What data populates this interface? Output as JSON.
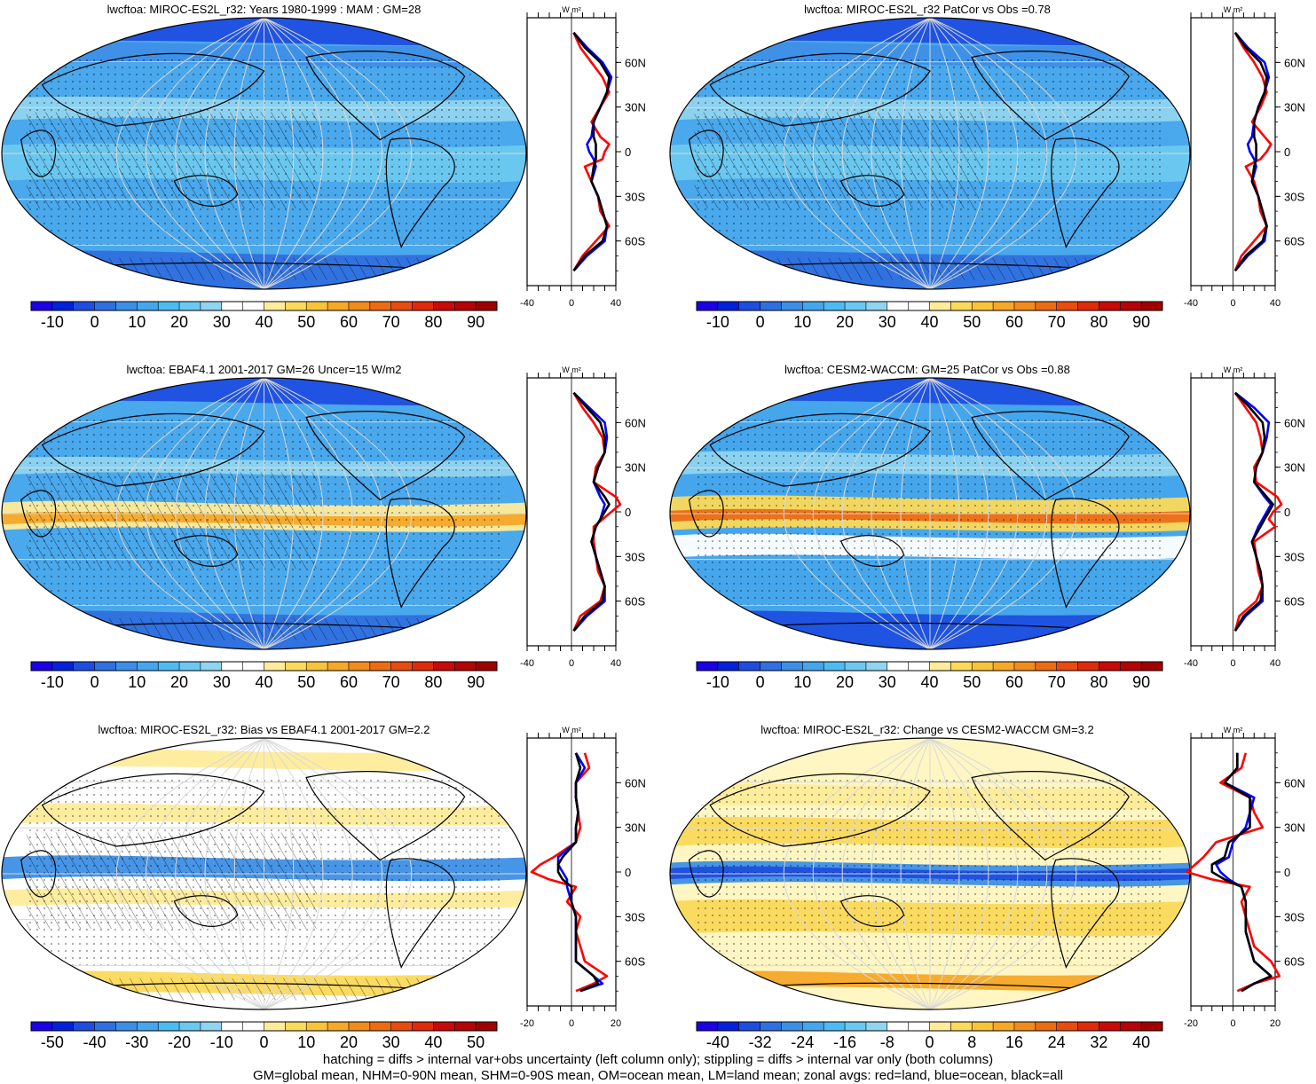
{
  "chart_data": [
    {
      "type": "heatmap",
      "title": "lwcftoa: MIROC-ES2L_r32: Years 1980-1999 : MAM : GM=28",
      "colorbar_ticks": [
        "-10",
        "0",
        "10",
        "20",
        "30",
        "40",
        "50",
        "60",
        "70",
        "80",
        "90"
      ],
      "colorbar_range": [
        -15,
        95
      ],
      "colorbar_step": 5,
      "zonal": {
        "unit": "W m²",
        "xlim": [
          -40,
          40
        ],
        "xticks": [
          "-40",
          "0",
          "40"
        ],
        "yticks": [
          "60N",
          "30N",
          "0",
          "30S",
          "60S"
        ],
        "lat": [
          80,
          70,
          60,
          50,
          40,
          30,
          20,
          10,
          5,
          0,
          -5,
          -10,
          -20,
          -30,
          -40,
          -50,
          -60,
          -70,
          -80
        ],
        "series": [
          {
            "name": "land",
            "color": "#ff0000",
            "values": [
              2,
              8,
              18,
              28,
              34,
              26,
              18,
              26,
              34,
              30,
              28,
              12,
              18,
              24,
              26,
              34,
              22,
              10,
              2
            ]
          },
          {
            "name": "ocean",
            "color": "#0000ff",
            "values": [
              2,
              14,
              28,
              36,
              32,
              26,
              20,
              18,
              14,
              16,
              20,
              22,
              18,
              24,
              28,
              32,
              30,
              14,
              2
            ]
          },
          {
            "name": "all",
            "color": "#000000",
            "values": [
              2,
              12,
              26,
              34,
              32,
              26,
              20,
              20,
              22,
              22,
              22,
              20,
              18,
              24,
              28,
              32,
              28,
              12,
              2
            ]
          }
        ]
      }
    },
    {
      "type": "heatmap",
      "title": "lwcftoa: MIROC-ES2L_r32 PatCor vs Obs =0.78",
      "colorbar_ticks": [
        "-10",
        "0",
        "10",
        "20",
        "30",
        "40",
        "50",
        "60",
        "70",
        "80",
        "90"
      ],
      "colorbar_range": [
        -15,
        95
      ],
      "colorbar_step": 5,
      "zonal": {
        "unit": "W m²",
        "xlim": [
          -40,
          40
        ],
        "xticks": [
          "-40",
          "0",
          "40"
        ],
        "yticks": [
          "60N",
          "30N",
          "0",
          "30S",
          "60S"
        ],
        "lat": [
          80,
          70,
          60,
          50,
          40,
          30,
          20,
          10,
          5,
          0,
          -5,
          -10,
          -20,
          -30,
          -40,
          -50,
          -60,
          -70,
          -80
        ],
        "series": [
          {
            "name": "land",
            "color": "#ff0000",
            "values": [
              2,
              10,
              20,
              28,
              32,
              26,
              18,
              30,
              36,
              32,
              26,
              12,
              20,
              24,
              26,
              32,
              20,
              8,
              2
            ]
          },
          {
            "name": "ocean",
            "color": "#0000ff",
            "values": [
              2,
              14,
              30,
              34,
              30,
              24,
              20,
              18,
              14,
              16,
              20,
              22,
              18,
              24,
              28,
              32,
              30,
              14,
              2
            ]
          },
          {
            "name": "all",
            "color": "#000000",
            "values": [
              2,
              12,
              26,
              32,
              30,
              24,
              20,
              20,
              22,
              22,
              22,
              20,
              18,
              24,
              28,
              32,
              28,
              12,
              2
            ]
          }
        ]
      }
    },
    {
      "type": "heatmap",
      "title": "lwcftoa: EBAF4.1 2001-2017 GM=26 Uncer=15 W/m2",
      "colorbar_ticks": [
        "-10",
        "0",
        "10",
        "20",
        "30",
        "40",
        "50",
        "60",
        "70",
        "80",
        "90"
      ],
      "colorbar_range": [
        -15,
        95
      ],
      "colorbar_step": 5,
      "zonal": {
        "unit": "W m²",
        "xlim": [
          -40,
          40
        ],
        "xticks": [
          "-40",
          "0",
          "40"
        ],
        "yticks": [
          "60N",
          "30N",
          "0",
          "30S",
          "60S"
        ],
        "lat": [
          80,
          70,
          60,
          50,
          40,
          30,
          20,
          10,
          5,
          0,
          -5,
          -10,
          -20,
          -30,
          -40,
          -50,
          -60,
          -70,
          -80
        ],
        "series": [
          {
            "name": "land",
            "color": "#ff0000",
            "values": [
              2,
              10,
              20,
              28,
              30,
              22,
              20,
              40,
              44,
              36,
              28,
              20,
              20,
              22,
              24,
              30,
              26,
              8,
              2
            ]
          },
          {
            "name": "ocean",
            "color": "#0000ff",
            "values": [
              2,
              16,
              30,
              32,
              30,
              24,
              20,
              26,
              30,
              28,
              26,
              22,
              18,
              22,
              26,
              30,
              30,
              14,
              2
            ]
          },
          {
            "name": "all",
            "color": "#000000",
            "values": [
              2,
              14,
              26,
              30,
              30,
              24,
              20,
              30,
              34,
              30,
              26,
              22,
              18,
              22,
              26,
              30,
              28,
              12,
              2
            ]
          }
        ]
      }
    },
    {
      "type": "heatmap",
      "title": "lwcftoa: CESM2-WACCM: GM=25 PatCor vs Obs =0.88",
      "colorbar_ticks": [
        "-10",
        "0",
        "10",
        "20",
        "30",
        "40",
        "50",
        "60",
        "70",
        "80",
        "90"
      ],
      "colorbar_range": [
        -15,
        95
      ],
      "colorbar_step": 5,
      "zonal": {
        "unit": "W m²",
        "xlim": [
          -40,
          40
        ],
        "xticks": [
          "-40",
          "0",
          "40"
        ],
        "yticks": [
          "60N",
          "30N",
          "0",
          "30S",
          "60S"
        ],
        "lat": [
          80,
          70,
          60,
          50,
          40,
          30,
          20,
          10,
          5,
          0,
          -5,
          -10,
          -20,
          -30,
          -40,
          -50,
          -60,
          -70,
          -80
        ],
        "series": [
          {
            "name": "land",
            "color": "#ff0000",
            "values": [
              2,
              12,
              22,
              26,
              28,
              20,
              22,
              42,
              46,
              38,
              34,
              40,
              20,
              22,
              24,
              28,
              22,
              6,
              2
            ]
          },
          {
            "name": "ocean",
            "color": "#0000ff",
            "values": [
              2,
              20,
              34,
              32,
              28,
              22,
              20,
              30,
              36,
              32,
              28,
              24,
              18,
              22,
              26,
              28,
              28,
              12,
              2
            ]
          },
          {
            "name": "all",
            "color": "#000000",
            "values": [
              2,
              16,
              28,
              30,
              28,
              22,
              20,
              32,
              38,
              34,
              30,
              26,
              18,
              22,
              26,
              28,
              26,
              10,
              2
            ]
          }
        ]
      }
    },
    {
      "type": "heatmap",
      "title": "lwcftoa: MIROC-ES2L_r32: Bias vs EBAF4.1 2001-2017 GM=2.2",
      "colorbar_ticks": [
        "-50",
        "-40",
        "-30",
        "-20",
        "-10",
        "0",
        "10",
        "20",
        "30",
        "40",
        "50"
      ],
      "colorbar_range": [
        -55,
        55
      ],
      "colorbar_step": 5,
      "zonal": {
        "unit": "W m²",
        "xlim": [
          -20,
          20
        ],
        "xticks": [
          "-20",
          "0",
          "20"
        ],
        "yticks": [
          "60N",
          "30N",
          "0",
          "30S",
          "60S"
        ],
        "lat": [
          80,
          70,
          60,
          50,
          40,
          30,
          20,
          10,
          5,
          0,
          -5,
          -10,
          -20,
          -30,
          -40,
          -50,
          -60,
          -70,
          -75,
          -80
        ],
        "series": [
          {
            "name": "land",
            "color": "#ff0000",
            "values": [
              6,
              8,
              2,
              2,
              3,
              4,
              2,
              -8,
              -14,
              -18,
              -10,
              2,
              -2,
              4,
              2,
              4,
              6,
              16,
              10,
              2
            ]
          },
          {
            "name": "ocean",
            "color": "#0000ff",
            "values": [
              2,
              6,
              2,
              2,
              3,
              2,
              2,
              -6,
              -6,
              -4,
              -2,
              -2,
              0,
              2,
              2,
              2,
              2,
              10,
              14,
              4
            ]
          },
          {
            "name": "all",
            "color": "#000000",
            "values": [
              2,
              4,
              2,
              2,
              3,
              2,
              2,
              -4,
              -6,
              -6,
              -4,
              0,
              0,
              2,
              2,
              2,
              2,
              10,
              12,
              4
            ]
          }
        ]
      }
    },
    {
      "type": "heatmap",
      "title": "lwcftoa: MIROC-ES2L_r32: Change vs CESM2-WACCM GM=3.2",
      "colorbar_ticks": [
        "-40",
        "-32",
        "-24",
        "-16",
        "-8",
        "0",
        "8",
        "16",
        "24",
        "32",
        "40"
      ],
      "colorbar_range": [
        -44,
        44
      ],
      "colorbar_step": 4,
      "zonal": {
        "unit": "W m²",
        "xlim": [
          -20,
          20
        ],
        "xticks": [
          "-20",
          "0",
          "20"
        ],
        "yticks": [
          "60N",
          "30N",
          "0",
          "30S",
          "60S"
        ],
        "lat": [
          80,
          70,
          60,
          50,
          40,
          30,
          20,
          10,
          5,
          0,
          -5,
          -10,
          -20,
          -30,
          -40,
          -50,
          -60,
          -70,
          -75,
          -80
        ],
        "series": [
          {
            "name": "land",
            "color": "#ff0000",
            "values": [
              6,
              4,
              -6,
              8,
              10,
              14,
              -8,
              -14,
              -18,
              -22,
              -10,
              8,
              4,
              6,
              8,
              10,
              18,
              22,
              10,
              2
            ]
          },
          {
            "name": "ocean",
            "color": "#0000ff",
            "values": [
              2,
              2,
              -4,
              10,
              8,
              6,
              0,
              -2,
              -8,
              -6,
              -2,
              4,
              6,
              6,
              6,
              8,
              10,
              18,
              10,
              4
            ]
          },
          {
            "name": "all",
            "color": "#000000",
            "values": [
              2,
              2,
              -4,
              8,
              8,
              8,
              -2,
              -4,
              -10,
              -10,
              -4,
              4,
              6,
              6,
              6,
              8,
              10,
              18,
              10,
              4
            ]
          }
        ]
      }
    }
  ],
  "footer": {
    "line1": "hatching = diffs > internal var+obs uncertainty (left column only); stippling = diffs > internal var only (both columns)",
    "line2": "GM=global mean, NHM=0-90N mean, SHM=0-90S mean, OM=ocean mean, LM=land mean; zonal avgs: red=land, blue=ocean, black=all"
  }
}
